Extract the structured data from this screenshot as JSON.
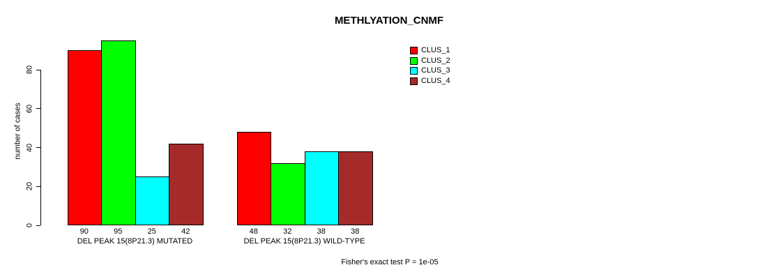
{
  "chart_data": {
    "type": "bar",
    "title": "METHLYATION_CNMF",
    "ylabel": "number of cases",
    "xlabel": "",
    "categories": [
      "DEL PEAK 15(8P21.3) MUTATED",
      "DEL PEAK 15(8P21.3) WILD-TYPE"
    ],
    "series": [
      {
        "name": "CLUS_1",
        "color": "#ff0000",
        "values": [
          90,
          48
        ]
      },
      {
        "name": "CLUS_2",
        "color": "#00ff00",
        "values": [
          95,
          32
        ]
      },
      {
        "name": "CLUS_3",
        "color": "#00ffff",
        "values": [
          25,
          38
        ]
      },
      {
        "name": "CLUS_4",
        "color": "#a52a2a",
        "values": [
          42,
          38
        ]
      }
    ],
    "yticks": [
      0,
      20,
      40,
      60,
      80
    ],
    "ylim": [
      0,
      95
    ],
    "show_bar_values": true,
    "grid": false,
    "legend_position": "top-right",
    "annotation": "Fisher's exact test P = 1e-05",
    "axis_color": "#000000",
    "background": "#ffffff"
  }
}
